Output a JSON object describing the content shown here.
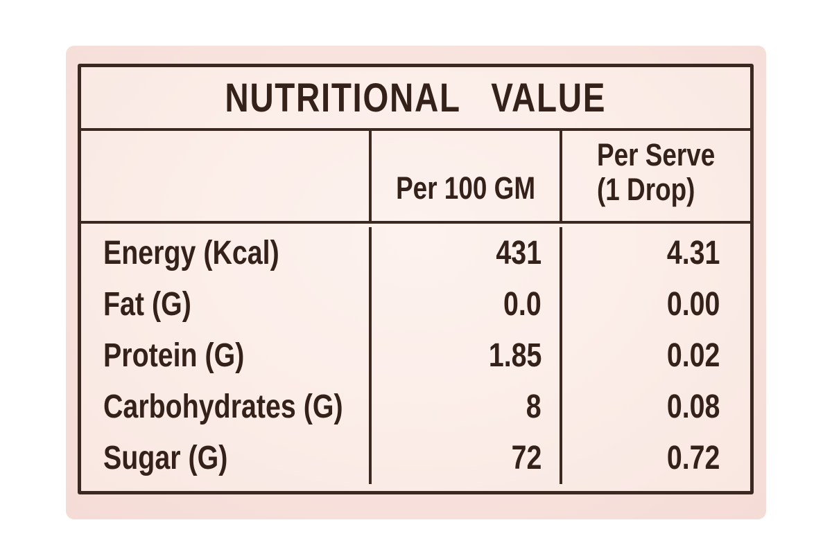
{
  "photo": {
    "title": "NUTRITIONAL VALUE",
    "columns": {
      "item": "",
      "per_100gm": "Per 100 GM",
      "per_serve_line1": "Per Serve",
      "per_serve_line2": "(1 Drop)"
    },
    "rows": [
      {
        "name": "Energy (Kcal)",
        "per_100gm": "431",
        "per_serve": "4.31"
      },
      {
        "name": "Fat (G)",
        "per_100gm": "0.0",
        "per_serve": "0.00"
      },
      {
        "name": "Protein (G)",
        "per_100gm": "1.85",
        "per_serve": "0.02"
      },
      {
        "name": "Carbohydrates (G)",
        "per_100gm": "8",
        "per_serve": "0.08"
      },
      {
        "name": "Sugar (G)",
        "per_100gm": "72",
        "per_serve": "0.72"
      }
    ],
    "colors": {
      "label_background": "#f8e2dd",
      "table_background": "#fdf1ec",
      "border": "#3b2820",
      "text": "#34211a"
    }
  }
}
